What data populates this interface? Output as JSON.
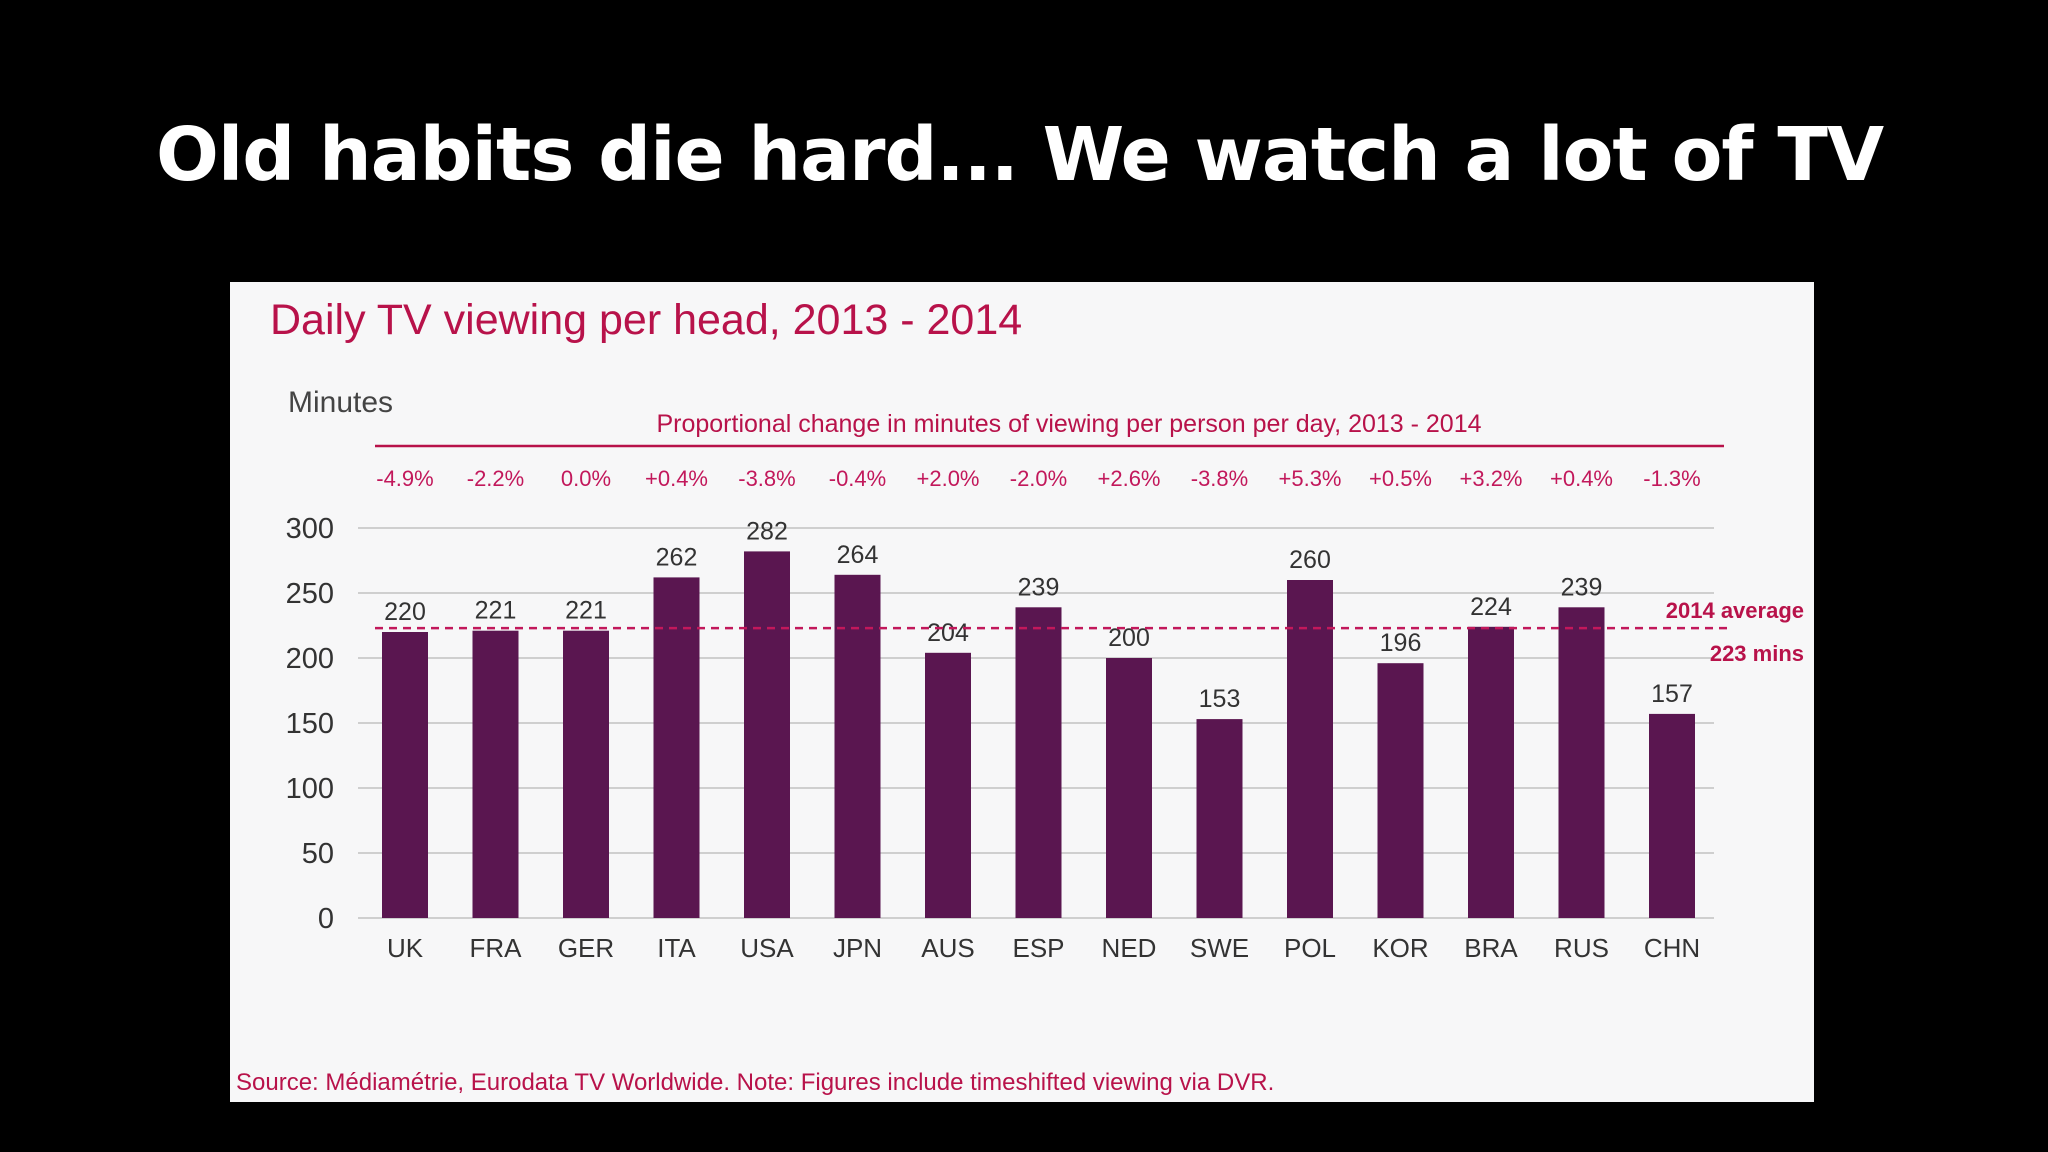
{
  "slide": {
    "title": "Old habits die hard... We watch a lot of TV"
  },
  "colors": {
    "background": "#000000",
    "panel": "#f7f7f8",
    "bar": "#5a1650",
    "accent": "#b8124a",
    "grid": "#cfcfcf"
  },
  "chart_data": {
    "type": "bar",
    "title": "Daily TV viewing per head, 2013 - 2014",
    "ylabel": "Minutes",
    "xlabel": "",
    "ylim": [
      0,
      300
    ],
    "yticks": [
      0,
      50,
      100,
      150,
      200,
      250,
      300
    ],
    "grid": true,
    "categories": [
      "UK",
      "FRA",
      "GER",
      "ITA",
      "USA",
      "JPN",
      "AUS",
      "ESP",
      "NED",
      "SWE",
      "POL",
      "KOR",
      "BRA",
      "RUS",
      "CHN"
    ],
    "values": [
      220,
      221,
      221,
      262,
      282,
      264,
      204,
      239,
      200,
      153,
      260,
      196,
      224,
      239,
      157
    ],
    "proportional_change_title": "Proportional change in minutes of viewing per person per day, 2013 - 2014",
    "proportional_change": [
      "-4.9%",
      "-2.2%",
      "0.0%",
      "+0.4%",
      "-3.8%",
      "-0.4%",
      "+2.0%",
      "-2.0%",
      "+2.6%",
      "-3.8%",
      "+5.3%",
      "+0.5%",
      "+3.2%",
      "+0.4%",
      "-1.3%"
    ],
    "reference_line": {
      "value": 223,
      "label_line1": "2014 average",
      "label_line2": "223 mins",
      "style": "dashed"
    },
    "source": "Source: Médiamétrie, Eurodata TV Worldwide. Note: Figures include timeshifted viewing via DVR."
  }
}
